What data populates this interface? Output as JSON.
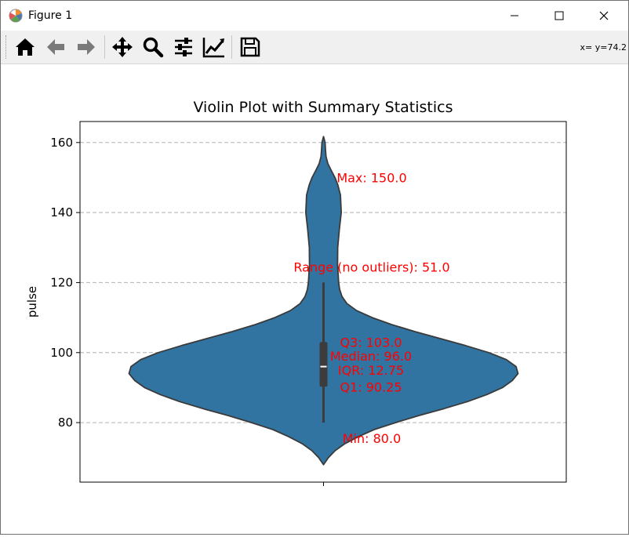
{
  "window": {
    "title": "Figure 1",
    "coords_readout": "x= y=74.2"
  },
  "toolbar": {
    "buttons": [
      {
        "name": "home-button",
        "icon": "home-icon"
      },
      {
        "name": "back-button",
        "icon": "arrow-left-icon"
      },
      {
        "name": "forward-button",
        "icon": "arrow-right-icon"
      },
      {
        "name": "pan-button",
        "icon": "move-icon"
      },
      {
        "name": "zoom-button",
        "icon": "magnifier-icon"
      },
      {
        "name": "configure-subplots-button",
        "icon": "sliders-icon"
      },
      {
        "name": "edit-axis-button",
        "icon": "line-chart-icon"
      },
      {
        "name": "save-button",
        "icon": "floppy-disk-icon"
      }
    ]
  },
  "chart_data": {
    "type": "violin",
    "title": "Violin Plot with Summary Statistics",
    "ylabel": "pulse",
    "xlabel": "",
    "ylim": [
      63,
      166
    ],
    "yticks": [
      80,
      100,
      120,
      140,
      160
    ],
    "grid": "y-dashed",
    "colors": {
      "violin": "#3274a1",
      "annotation": "#ff0000",
      "box": "#3c3c3c",
      "median": "#ffffff"
    },
    "density": [
      [
        68,
        0.0
      ],
      [
        70,
        0.025
      ],
      [
        72,
        0.06
      ],
      [
        74,
        0.11
      ],
      [
        76,
        0.18
      ],
      [
        78,
        0.26
      ],
      [
        80,
        0.37
      ],
      [
        82,
        0.49
      ],
      [
        84,
        0.62
      ],
      [
        86,
        0.74
      ],
      [
        88,
        0.84
      ],
      [
        90,
        0.92
      ],
      [
        92,
        0.97
      ],
      [
        94,
        1.0
      ],
      [
        96,
        0.99
      ],
      [
        98,
        0.94
      ],
      [
        100,
        0.85
      ],
      [
        102,
        0.73
      ],
      [
        104,
        0.6
      ],
      [
        106,
        0.47
      ],
      [
        108,
        0.35
      ],
      [
        110,
        0.25
      ],
      [
        112,
        0.17
      ],
      [
        114,
        0.12
      ],
      [
        116,
        0.095
      ],
      [
        118,
        0.083
      ],
      [
        120,
        0.078
      ],
      [
        125,
        0.072
      ],
      [
        130,
        0.073
      ],
      [
        135,
        0.081
      ],
      [
        140,
        0.091
      ],
      [
        145,
        0.087
      ],
      [
        148,
        0.073
      ],
      [
        150,
        0.059
      ],
      [
        152,
        0.04
      ],
      [
        154,
        0.022
      ],
      [
        156,
        0.013
      ],
      [
        158,
        0.01
      ],
      [
        160,
        0.008
      ],
      [
        161.7,
        0.0
      ]
    ],
    "box": {
      "q1": 90.25,
      "median": 96.0,
      "q3": 103.0,
      "whisker_low": 80.0,
      "whisker_high": 120.0
    },
    "annotations": [
      {
        "text": "Max: 150.0",
        "y": 150.0,
        "x": 0.05
      },
      {
        "text": "Range (no outliers): 51.0",
        "y": 124.5,
        "x": 0.0
      },
      {
        "text": "Q3: 103.0",
        "y": 103.0,
        "x": 0.08
      },
      {
        "text": "Median: 96.0",
        "y": 99.0,
        "x": 0.08
      },
      {
        "text": "IQR: 12.75",
        "y": 95.0,
        "x": 0.08
      },
      {
        "text": "Q1: 90.25",
        "y": 90.25,
        "x": 0.08
      },
      {
        "text": "Min: 80.0",
        "y": 75.5,
        "x": 0.08
      }
    ]
  }
}
